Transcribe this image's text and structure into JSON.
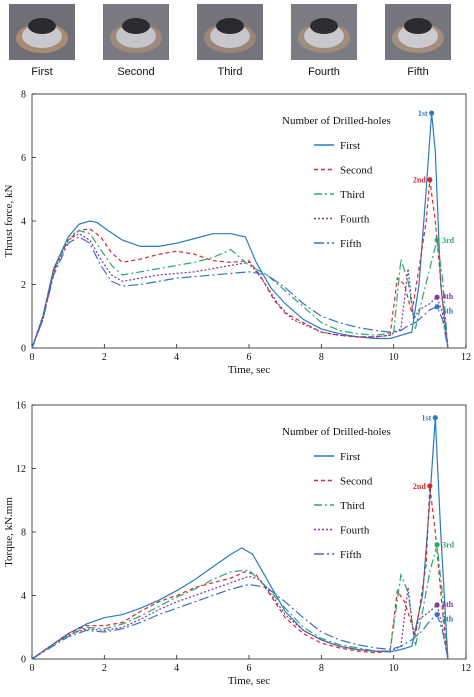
{
  "photos": [
    {
      "label": "First"
    },
    {
      "label": "Second"
    },
    {
      "label": "Third"
    },
    {
      "label": "Fourth"
    },
    {
      "label": "Fifth"
    }
  ],
  "series_colors": {
    "First": "#2b7bc0",
    "Second": "#d42a2a",
    "Third": "#2ca86a",
    "Fourth": "#7a3aa0",
    "Fifth": "#3a6fc8"
  },
  "chart_data": [
    {
      "type": "line",
      "title": "",
      "xlabel": "Time, sec",
      "ylabel": "Thrust force, kN",
      "xlim": [
        0,
        12
      ],
      "ylim": [
        0,
        8
      ],
      "xticks": [
        0,
        2,
        4,
        6,
        8,
        10,
        12
      ],
      "yticks": [
        0,
        2,
        4,
        6,
        8
      ],
      "legend_title": "Number of Drilled-holes",
      "legend_position": "top-right",
      "series": [
        {
          "name": "First",
          "dash": "solid",
          "x": [
            0,
            0.3,
            0.6,
            1.0,
            1.3,
            1.6,
            1.8,
            2.1,
            2.5,
            3.0,
            3.5,
            4.0,
            4.5,
            5.0,
            5.5,
            5.9,
            6.2,
            6.6,
            7.0,
            7.5,
            8.0,
            8.5,
            9.0,
            9.5,
            9.9,
            10.2,
            10.5,
            10.7,
            10.9,
            11.05,
            11.15,
            11.3,
            11.5
          ],
          "y": [
            0,
            1.0,
            2.5,
            3.5,
            3.9,
            4.0,
            3.95,
            3.7,
            3.4,
            3.2,
            3.2,
            3.3,
            3.45,
            3.6,
            3.6,
            3.5,
            2.7,
            1.9,
            1.4,
            0.9,
            0.6,
            0.45,
            0.35,
            0.3,
            0.3,
            0.4,
            0.5,
            2.0,
            5.0,
            7.4,
            6.2,
            2.0,
            0
          ]
        },
        {
          "name": "Second",
          "dash": "4,3",
          "x": [
            0,
            0.3,
            0.6,
            1.0,
            1.3,
            1.6,
            1.9,
            2.2,
            2.5,
            3.0,
            3.5,
            4.0,
            4.5,
            5.0,
            5.5,
            6.0,
            6.3,
            6.7,
            7.0,
            7.5,
            8.0,
            8.5,
            9.0,
            9.5,
            9.9,
            10.1,
            10.3,
            10.5,
            10.7,
            10.9,
            11.0,
            11.15,
            11.35,
            11.5
          ],
          "y": [
            0,
            1.0,
            2.5,
            3.4,
            3.7,
            3.75,
            3.5,
            3.0,
            2.7,
            2.8,
            2.95,
            3.05,
            2.95,
            2.75,
            2.7,
            2.75,
            2.3,
            1.5,
            1.1,
            0.8,
            0.5,
            0.4,
            0.35,
            0.35,
            0.4,
            2.2,
            2.0,
            1.1,
            2.5,
            4.0,
            5.3,
            4.0,
            1.5,
            0
          ]
        },
        {
          "name": "Third",
          "dash": "8,3,2,3",
          "x": [
            0,
            0.3,
            0.6,
            1.0,
            1.3,
            1.6,
            1.9,
            2.2,
            2.5,
            3.0,
            3.5,
            4.0,
            4.5,
            5.0,
            5.5,
            6.0,
            6.5,
            7.0,
            7.5,
            8.0,
            8.5,
            9.0,
            9.5,
            9.8,
            10.0,
            10.2,
            10.4,
            10.6,
            10.8,
            11.0,
            11.2,
            11.35,
            11.5
          ],
          "y": [
            0,
            0.9,
            2.4,
            3.5,
            3.7,
            3.6,
            3.1,
            2.6,
            2.3,
            2.4,
            2.5,
            2.6,
            2.7,
            2.85,
            3.1,
            2.6,
            2.3,
            1.8,
            1.3,
            0.8,
            0.55,
            0.45,
            0.4,
            0.45,
            0.5,
            2.8,
            2.1,
            0.6,
            1.6,
            2.5,
            3.4,
            2.2,
            0
          ]
        },
        {
          "name": "Fourth",
          "dash": "2,2",
          "x": [
            0,
            0.3,
            0.6,
            1.0,
            1.3,
            1.6,
            1.9,
            2.2,
            2.5,
            3.0,
            3.5,
            4.0,
            4.5,
            5.0,
            5.5,
            6.0,
            6.4,
            6.8,
            7.2,
            7.6,
            8.0,
            8.5,
            9.0,
            9.5,
            9.9,
            10.2,
            10.4,
            10.55,
            10.7,
            11.0,
            11.2,
            11.35,
            11.5
          ],
          "y": [
            0,
            0.9,
            2.4,
            3.4,
            3.6,
            3.4,
            2.8,
            2.3,
            2.1,
            2.2,
            2.3,
            2.35,
            2.4,
            2.5,
            2.6,
            2.7,
            2.1,
            1.4,
            0.9,
            0.7,
            0.5,
            0.4,
            0.35,
            0.35,
            0.4,
            0.6,
            2.5,
            0.9,
            1.2,
            1.4,
            1.6,
            1.1,
            0
          ]
        },
        {
          "name": "Fifth",
          "dash": "10,3,2,3",
          "x": [
            0,
            0.3,
            0.6,
            1.0,
            1.3,
            1.6,
            1.9,
            2.2,
            2.5,
            3.0,
            3.5,
            4.0,
            4.5,
            5.0,
            5.5,
            6.0,
            6.5,
            7.0,
            7.5,
            8.0,
            8.5,
            9.0,
            9.5,
            9.9,
            10.2,
            10.4,
            10.6,
            10.8,
            11.0,
            11.2,
            11.35,
            11.5
          ],
          "y": [
            0,
            0.9,
            2.3,
            3.3,
            3.5,
            3.3,
            2.6,
            2.1,
            1.95,
            2.0,
            2.1,
            2.2,
            2.25,
            2.3,
            2.35,
            2.4,
            2.3,
            1.9,
            1.4,
            1.0,
            0.8,
            0.65,
            0.55,
            0.5,
            0.55,
            0.7,
            0.8,
            1.0,
            1.2,
            1.3,
            0.9,
            0
          ]
        }
      ],
      "peak_labels": [
        {
          "text": "1st",
          "series": "First",
          "x": 11.05,
          "y": 7.4
        },
        {
          "text": "2nd",
          "series": "Second",
          "x": 11.0,
          "y": 5.3
        },
        {
          "text": "3rd",
          "series": "Third",
          "x": 11.2,
          "y": 3.4
        },
        {
          "text": "4th",
          "series": "Fourth",
          "x": 11.2,
          "y": 1.6
        },
        {
          "text": "5th",
          "series": "Fifth",
          "x": 11.2,
          "y": 1.3
        }
      ]
    },
    {
      "type": "line",
      "title": "",
      "xlabel": "Time, sec",
      "ylabel": "Torque, kN.mm",
      "xlim": [
        0,
        12
      ],
      "ylim": [
        0,
        16
      ],
      "xticks": [
        0,
        2,
        4,
        6,
        8,
        10,
        12
      ],
      "yticks": [
        0,
        4,
        8,
        12,
        16
      ],
      "legend_title": "Number of Drilled-holes",
      "legend_position": "top-right",
      "series": [
        {
          "name": "First",
          "dash": "solid",
          "x": [
            0,
            0.5,
            1.0,
            1.5,
            2.0,
            2.5,
            3.0,
            3.5,
            4.0,
            4.5,
            5.0,
            5.5,
            5.8,
            6.1,
            6.5,
            7.0,
            7.5,
            8.0,
            8.5,
            9.0,
            9.5,
            9.9,
            10.2,
            10.5,
            10.8,
            11.0,
            11.15,
            11.3,
            11.5
          ],
          "y": [
            0,
            0.8,
            1.6,
            2.2,
            2.6,
            2.8,
            3.2,
            3.7,
            4.3,
            5.0,
            5.8,
            6.6,
            7.0,
            6.6,
            5.0,
            3.0,
            1.8,
            1.2,
            0.8,
            0.6,
            0.5,
            0.45,
            0.6,
            0.8,
            4.0,
            10.0,
            15.2,
            8.0,
            0
          ]
        },
        {
          "name": "Second",
          "dash": "4,3",
          "x": [
            0,
            0.5,
            1.0,
            1.5,
            2.0,
            2.5,
            3.0,
            3.5,
            4.0,
            4.5,
            5.0,
            5.5,
            5.9,
            6.2,
            6.6,
            7.0,
            7.5,
            8.0,
            8.5,
            9.0,
            9.5,
            9.9,
            10.1,
            10.3,
            10.6,
            10.9,
            11.0,
            11.15,
            11.35,
            11.5
          ],
          "y": [
            0,
            0.8,
            1.6,
            2.1,
            2.1,
            2.3,
            3.0,
            3.6,
            4.0,
            4.5,
            4.8,
            5.1,
            5.5,
            5.3,
            4.0,
            2.6,
            1.6,
            1.0,
            0.7,
            0.5,
            0.4,
            0.5,
            4.3,
            3.6,
            1.5,
            6.0,
            10.9,
            8.0,
            3.0,
            0
          ]
        },
        {
          "name": "Third",
          "dash": "8,3,2,3",
          "x": [
            0,
            0.5,
            1.0,
            1.5,
            2.0,
            2.5,
            3.0,
            3.5,
            4.0,
            4.5,
            5.0,
            5.5,
            6.0,
            6.5,
            7.0,
            7.5,
            8.0,
            8.5,
            9.0,
            9.5,
            9.9,
            10.2,
            10.4,
            10.6,
            10.8,
            11.0,
            11.2,
            11.35,
            11.5
          ],
          "y": [
            0,
            0.8,
            1.5,
            2.0,
            1.9,
            2.2,
            2.7,
            3.3,
            3.9,
            4.4,
            5.0,
            5.5,
            5.6,
            4.5,
            3.2,
            2.0,
            1.3,
            0.9,
            0.7,
            0.5,
            0.5,
            5.3,
            4.2,
            0.8,
            3.0,
            5.5,
            7.2,
            4.0,
            0
          ]
        },
        {
          "name": "Fourth",
          "dash": "2,2",
          "x": [
            0,
            0.5,
            1.0,
            1.5,
            2.0,
            2.5,
            3.0,
            3.5,
            4.0,
            4.5,
            5.0,
            5.5,
            6.0,
            6.3,
            6.7,
            7.0,
            7.5,
            8.0,
            8.5,
            9.0,
            9.5,
            9.9,
            10.2,
            10.4,
            10.55,
            10.7,
            11.0,
            11.2,
            11.35,
            11.5
          ],
          "y": [
            0,
            0.8,
            1.5,
            1.9,
            1.8,
            2.0,
            2.5,
            3.1,
            3.6,
            4.0,
            4.4,
            4.8,
            5.2,
            5.0,
            3.8,
            2.8,
            1.8,
            1.2,
            0.8,
            0.6,
            0.5,
            0.5,
            0.8,
            4.5,
            1.5,
            2.5,
            3.0,
            3.4,
            2.0,
            0
          ]
        },
        {
          "name": "Fifth",
          "dash": "10,3,2,3",
          "x": [
            0,
            0.5,
            1.0,
            1.5,
            2.0,
            2.5,
            3.0,
            3.5,
            4.0,
            4.5,
            5.0,
            5.5,
            6.0,
            6.5,
            7.0,
            7.5,
            8.0,
            8.5,
            9.0,
            9.5,
            9.9,
            10.2,
            10.5,
            10.8,
            11.0,
            11.2,
            11.35,
            11.5
          ],
          "y": [
            0,
            0.7,
            1.4,
            1.8,
            1.7,
            1.9,
            2.3,
            2.8,
            3.2,
            3.6,
            4.0,
            4.4,
            4.7,
            4.5,
            3.6,
            2.6,
            1.7,
            1.2,
            0.9,
            0.7,
            0.6,
            0.8,
            1.2,
            1.8,
            2.4,
            2.8,
            1.8,
            0
          ]
        }
      ],
      "peak_labels": [
        {
          "text": "1st",
          "series": "First",
          "x": 11.15,
          "y": 15.2
        },
        {
          "text": "2nd",
          "series": "Second",
          "x": 11.0,
          "y": 10.9
        },
        {
          "text": "3rd",
          "series": "Third",
          "x": 11.2,
          "y": 7.2
        },
        {
          "text": "4th",
          "series": "Fourth",
          "x": 11.2,
          "y": 3.4
        },
        {
          "text": "5th",
          "series": "Fifth",
          "x": 11.2,
          "y": 2.8
        }
      ]
    }
  ]
}
